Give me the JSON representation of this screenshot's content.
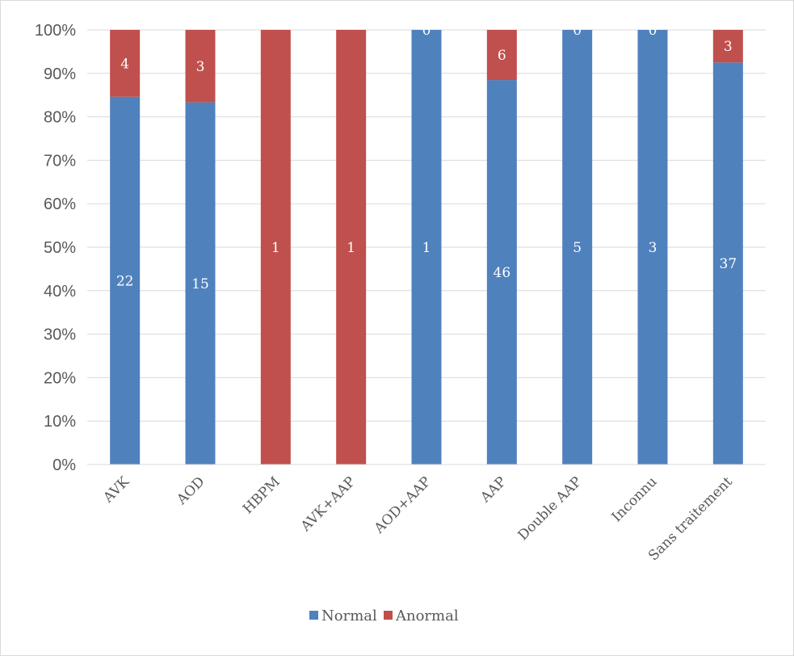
{
  "chart_data": {
    "type": "bar",
    "stacked": true,
    "normalized": true,
    "categories": [
      "AVK",
      "AOD",
      "HBPM",
      "AVK+AAP",
      "AOD+AAP",
      "AAP",
      "Double AAP",
      "Inconnu",
      "Sans traitement"
    ],
    "series": [
      {
        "name": "Normal",
        "color": "#4f81bd",
        "values": [
          22,
          15,
          0,
          0,
          1,
          46,
          5,
          3,
          37
        ]
      },
      {
        "name": "Anormal",
        "color": "#c0504d",
        "values": [
          4,
          3,
          1,
          1,
          0,
          6,
          0,
          0,
          3
        ]
      }
    ],
    "y_ticks": [
      "0%",
      "10%",
      "20%",
      "30%",
      "40%",
      "50%",
      "60%",
      "70%",
      "80%",
      "90%",
      "100%"
    ],
    "ylim": [
      0,
      100
    ],
    "grid": true,
    "legend_position": "bottom"
  }
}
